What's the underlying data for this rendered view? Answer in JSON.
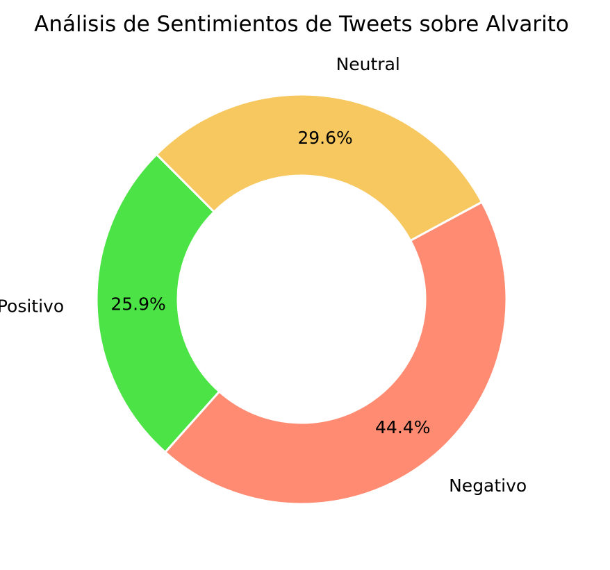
{
  "chart_data": {
    "type": "pie",
    "title": "Análisis de Sentimientos de Tweets sobre Alvarito",
    "donut": true,
    "start_angle_deg": 135,
    "direction": "counterclockwise",
    "slices": [
      {
        "label": "Positivo",
        "value": 25.9,
        "value_label": "25.9%",
        "color": "#4ce346"
      },
      {
        "label": "Negativo",
        "value": 44.4,
        "value_label": "44.4%",
        "color": "#ff8b72"
      },
      {
        "label": "Neutral",
        "value": 29.6,
        "value_label": "29.6%",
        "color": "#f7c860"
      }
    ],
    "legend": "none"
  }
}
